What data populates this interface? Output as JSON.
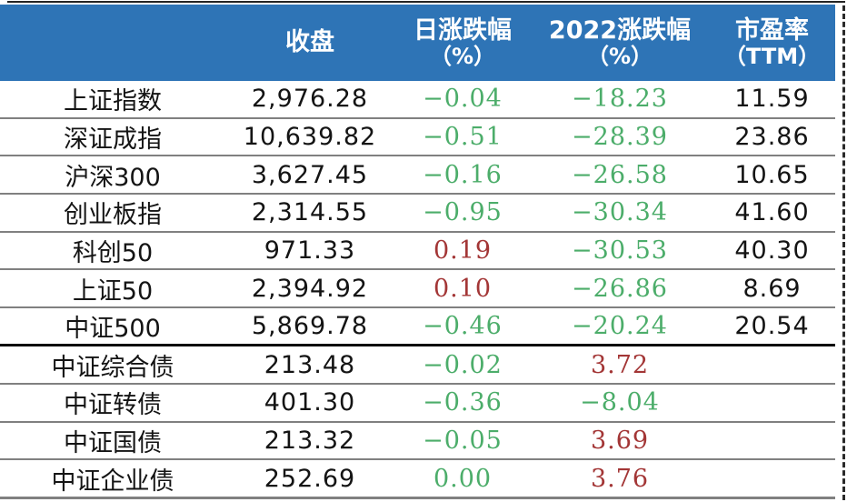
{
  "colors": {
    "header_bg": "#2E74B6",
    "header_text": "#FFFFFF",
    "up": "#A33636",
    "down": "#4CAD6A",
    "text": "#141414",
    "grid": "#808080",
    "divider": "#0B0B0B"
  },
  "table": {
    "columns": [
      {
        "key": "name",
        "label": "",
        "sublabel": ""
      },
      {
        "key": "close",
        "label": "收盘",
        "sublabel": ""
      },
      {
        "key": "day_chg",
        "label": "日涨跌幅",
        "sublabel": "（%）"
      },
      {
        "key": "ytd_chg",
        "label": "2022涨跌幅",
        "sublabel": "（%）"
      },
      {
        "key": "pe",
        "label": "市盈率",
        "sublabel": "（TTM）"
      }
    ],
    "rows": [
      {
        "name": "上证指数",
        "close": "2,976.28",
        "day_change": "−0.04",
        "day_dir": "down",
        "ytd_change": "−18.23",
        "ytd_dir": "down",
        "pe": "11.59",
        "section_divider_below": false
      },
      {
        "name": "深证成指",
        "close": "10,639.82",
        "day_change": "−0.51",
        "day_dir": "down",
        "ytd_change": "−28.39",
        "ytd_dir": "down",
        "pe": "23.86",
        "section_divider_below": false
      },
      {
        "name": "沪深300",
        "close": "3,627.45",
        "day_change": "−0.16",
        "day_dir": "down",
        "ytd_change": "−26.58",
        "ytd_dir": "down",
        "pe": "10.65",
        "section_divider_below": false
      },
      {
        "name": "创业板指",
        "close": "2,314.55",
        "day_change": "−0.95",
        "day_dir": "down",
        "ytd_change": "−30.34",
        "ytd_dir": "down",
        "pe": "41.60",
        "section_divider_below": false
      },
      {
        "name": "科创50",
        "close": "971.33",
        "day_change": "0.19",
        "day_dir": "up",
        "ytd_change": "−30.53",
        "ytd_dir": "down",
        "pe": "40.30",
        "section_divider_below": false
      },
      {
        "name": "上证50",
        "close": "2,394.92",
        "day_change": "0.10",
        "day_dir": "up",
        "ytd_change": "−26.86",
        "ytd_dir": "down",
        "pe": "8.69",
        "section_divider_below": false
      },
      {
        "name": "中证500",
        "close": "5,869.78",
        "day_change": "−0.46",
        "day_dir": "down",
        "ytd_change": "−20.24",
        "ytd_dir": "down",
        "pe": "20.54",
        "section_divider_below": true
      },
      {
        "name": "中证综合债",
        "close": "213.48",
        "day_change": "−0.02",
        "day_dir": "down",
        "ytd_change": "3.72",
        "ytd_dir": "up",
        "pe": "",
        "section_divider_below": false
      },
      {
        "name": "中证转债",
        "close": "401.30",
        "day_change": "−0.36",
        "day_dir": "down",
        "ytd_change": "−8.04",
        "ytd_dir": "down",
        "pe": "",
        "section_divider_below": false
      },
      {
        "name": "中证国债",
        "close": "213.32",
        "day_change": "−0.05",
        "day_dir": "down",
        "ytd_change": "3.69",
        "ytd_dir": "up",
        "pe": "",
        "section_divider_below": false
      },
      {
        "name": "中证企业债",
        "close": "252.69",
        "day_change": "0.00",
        "day_dir": "down",
        "ytd_change": "3.76",
        "ytd_dir": "up",
        "pe": "",
        "section_divider_below": false
      }
    ]
  },
  "chart_data": {
    "type": "table",
    "title": "",
    "columns": [
      "",
      "收盘",
      "日涨跌幅（%）",
      "2022涨跌幅（%）",
      "市盈率（TTM）"
    ],
    "rows": [
      [
        "上证指数",
        2976.28,
        -0.04,
        -18.23,
        11.59
      ],
      [
        "深证成指",
        10639.82,
        -0.51,
        -28.39,
        23.86
      ],
      [
        "沪深300",
        3627.45,
        -0.16,
        -26.58,
        10.65
      ],
      [
        "创业板指",
        2314.55,
        -0.95,
        -30.34,
        41.6
      ],
      [
        "科创50",
        971.33,
        0.19,
        -30.53,
        40.3
      ],
      [
        "上证50",
        2394.92,
        0.1,
        -26.86,
        8.69
      ],
      [
        "中证500",
        5869.78,
        -0.46,
        -20.24,
        20.54
      ],
      [
        "中证综合债",
        213.48,
        -0.02,
        3.72,
        null
      ],
      [
        "中证转债",
        401.3,
        -0.36,
        -8.04,
        null
      ],
      [
        "中证国债",
        213.32,
        -0.05,
        3.69,
        null
      ],
      [
        "中证企业债",
        252.69,
        0.0,
        3.76,
        null
      ]
    ],
    "layout_hints": {
      "negative_color": "green",
      "positive_color": "red",
      "header_style": "blue background, white bold text",
      "section_break_after_row": "中证500"
    }
  }
}
